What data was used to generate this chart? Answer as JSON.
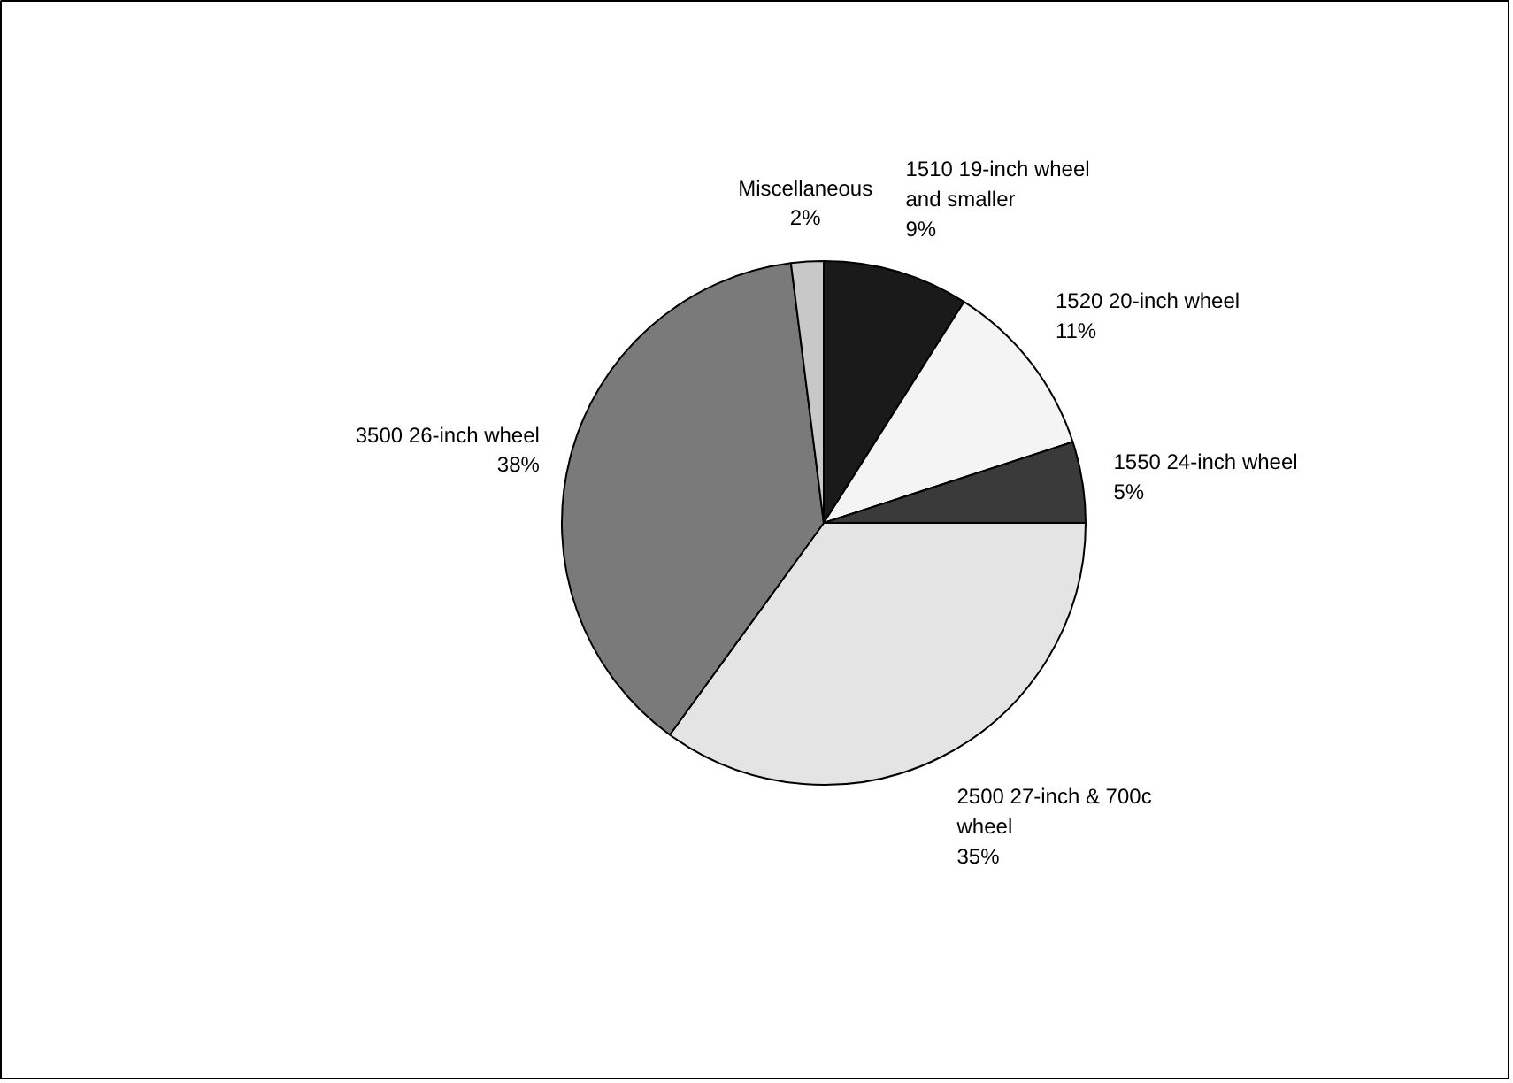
{
  "chart_data": {
    "type": "pie",
    "categories": [
      "1510 19-inch wheel and smaller",
      "1520 20-inch wheel",
      "1550 24-inch wheel",
      "2500 27-inch & 700c wheel",
      "3500 26-inch wheel",
      "Miscellaneous"
    ],
    "values": [
      9,
      11,
      5,
      35,
      38,
      2
    ],
    "value_labels": [
      "9%",
      "11%",
      "5%",
      "35%",
      "38%",
      "2%"
    ],
    "colors": [
      "#1a1a1a",
      "#f4f4f4",
      "#3a3a3a",
      "#e4e4e4",
      "#7a7a7a",
      "#c8c8c8"
    ]
  }
}
